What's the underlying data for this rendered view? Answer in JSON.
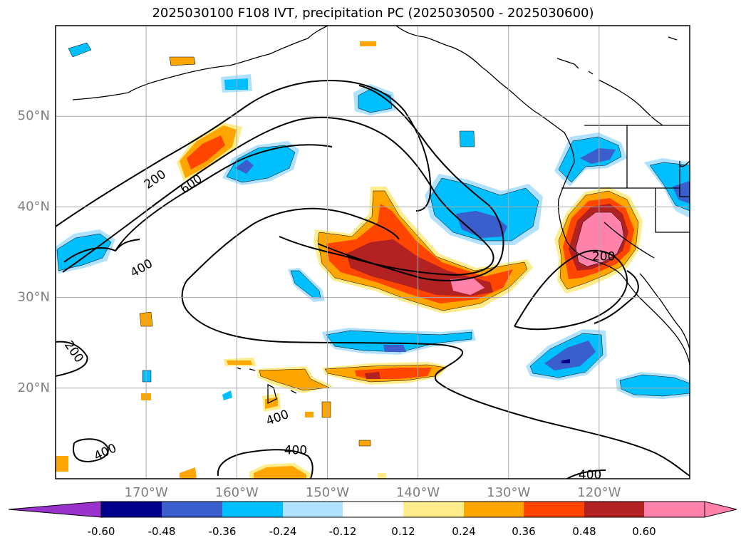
{
  "title": "2025030100 F108 IVT, precipitation PC (2025030500 - 2025030600)",
  "map": {
    "extent": {
      "lon": [
        -180,
        -110
      ],
      "lat": [
        10,
        60
      ]
    },
    "grid": true,
    "lat_ticks": [
      {
        "value": 50,
        "label": "50°N"
      },
      {
        "value": 40,
        "label": "40°N"
      },
      {
        "value": 30,
        "label": "30°N"
      },
      {
        "value": 20,
        "label": "20°N"
      }
    ],
    "lon_ticks": [
      {
        "value": -170,
        "label": "170°W"
      },
      {
        "value": -160,
        "label": "160°W"
      },
      {
        "value": -150,
        "label": "150°W"
      },
      {
        "value": -140,
        "label": "140°W"
      },
      {
        "value": -130,
        "label": "130°W"
      },
      {
        "value": -120,
        "label": "120°W"
      }
    ],
    "tick_label_color": "#7f7f7f",
    "ivt_contour_labels": [
      {
        "text": "200",
        "lon": -178.0,
        "lat": 24.0,
        "rot": 55
      },
      {
        "text": "200",
        "lon": -169.0,
        "lat": 43.0,
        "rot": -35
      },
      {
        "text": "600",
        "lon": -165.0,
        "lat": 42.5,
        "rot": -35
      },
      {
        "text": "400",
        "lon": -170.5,
        "lat": 33.2,
        "rot": -30
      },
      {
        "text": "200",
        "lon": -119.5,
        "lat": 34.5,
        "rot": 0
      },
      {
        "text": "400",
        "lon": -155.5,
        "lat": 16.7,
        "rot": -20
      },
      {
        "text": "400",
        "lon": -153.5,
        "lat": 13.1,
        "rot": 0
      },
      {
        "text": "400",
        "lon": -174.5,
        "lat": 12.9,
        "rot": -25
      },
      {
        "text": "400",
        "lon": -121.0,
        "lat": 10.4,
        "rot": 0
      }
    ]
  },
  "colorbar": {
    "ticks": [
      "-0.60",
      "-0.48",
      "-0.36",
      "-0.24",
      "-0.12",
      "0.12",
      "0.24",
      "0.36",
      "0.48",
      "0.60"
    ],
    "colors": [
      "#9932cc",
      "#00008b",
      "#3a5fcd",
      "#00bfff",
      "#b0e2ff",
      "#ffffff",
      "#ffec8b",
      "#ffa500",
      "#ff4500",
      "#b22222",
      "#ff82ab"
    ],
    "extend": "both"
  }
}
